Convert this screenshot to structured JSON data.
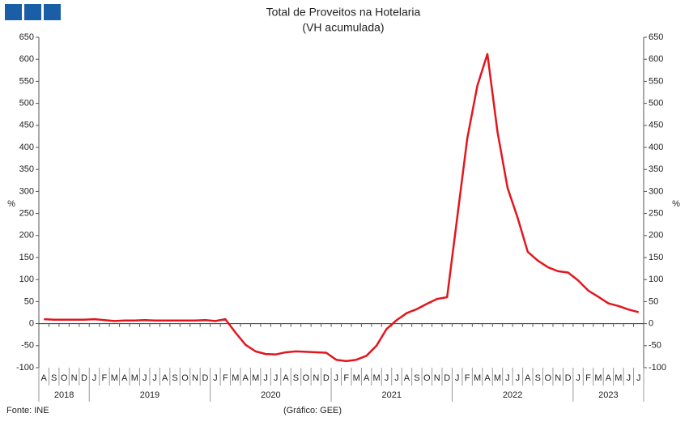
{
  "chart_data": {
    "type": "line",
    "title": "Total de Proveitos na Hotelaria",
    "subtitle": "(VH acumulada)",
    "y_label": "%",
    "y2_label": "%",
    "source": "Fonte: INE",
    "credit": "(Gráfico: GEE)",
    "categories": [
      "A",
      "S",
      "O",
      "N",
      "D",
      "J",
      "F",
      "M",
      "A",
      "M",
      "J",
      "J",
      "A",
      "S",
      "O",
      "N",
      "D",
      "J",
      "F",
      "M",
      "A",
      "M",
      "J",
      "J",
      "A",
      "S",
      "O",
      "N",
      "D",
      "J",
      "F",
      "M",
      "A",
      "M",
      "J",
      "J",
      "A",
      "S",
      "O",
      "N",
      "D",
      "J",
      "F",
      "M",
      "A",
      "M",
      "J",
      "J",
      "A",
      "S",
      "O",
      "N",
      "D",
      "J",
      "F",
      "M",
      "A",
      "M",
      "J",
      "J"
    ],
    "year_groups": [
      {
        "label": "2018",
        "months": 5
      },
      {
        "label": "2019",
        "months": 12
      },
      {
        "label": "2020",
        "months": 12
      },
      {
        "label": "2021",
        "months": 12
      },
      {
        "label": "2022",
        "months": 12
      },
      {
        "label": "2023",
        "months": 7
      }
    ],
    "values": [
      10,
      9,
      9,
      9,
      9,
      10,
      8,
      6,
      7,
      7,
      8,
      7,
      7,
      7,
      7,
      7,
      8,
      6,
      10,
      -20,
      -48,
      -63,
      -69,
      -70,
      -65,
      -63,
      -64,
      -65,
      -66,
      -82,
      -85,
      -82,
      -73,
      -50,
      -12,
      8,
      24,
      33,
      45,
      56,
      60,
      240,
      420,
      540,
      612,
      435,
      308,
      240,
      163,
      143,
      128,
      119,
      116,
      98,
      75,
      61,
      46,
      40,
      32,
      26
    ],
    "color": "#e3161e",
    "ylim": [
      -100,
      650
    ],
    "yticks": [
      -100,
      -50,
      0,
      50,
      100,
      150,
      200,
      250,
      300,
      350,
      400,
      450,
      500,
      550,
      600,
      650
    ],
    "y2lim": [
      -100,
      650
    ],
    "y2ticks": [
      -100,
      -50,
      0,
      50,
      100,
      150,
      200,
      250,
      300,
      350,
      400,
      450,
      500,
      550,
      600,
      650
    ]
  }
}
